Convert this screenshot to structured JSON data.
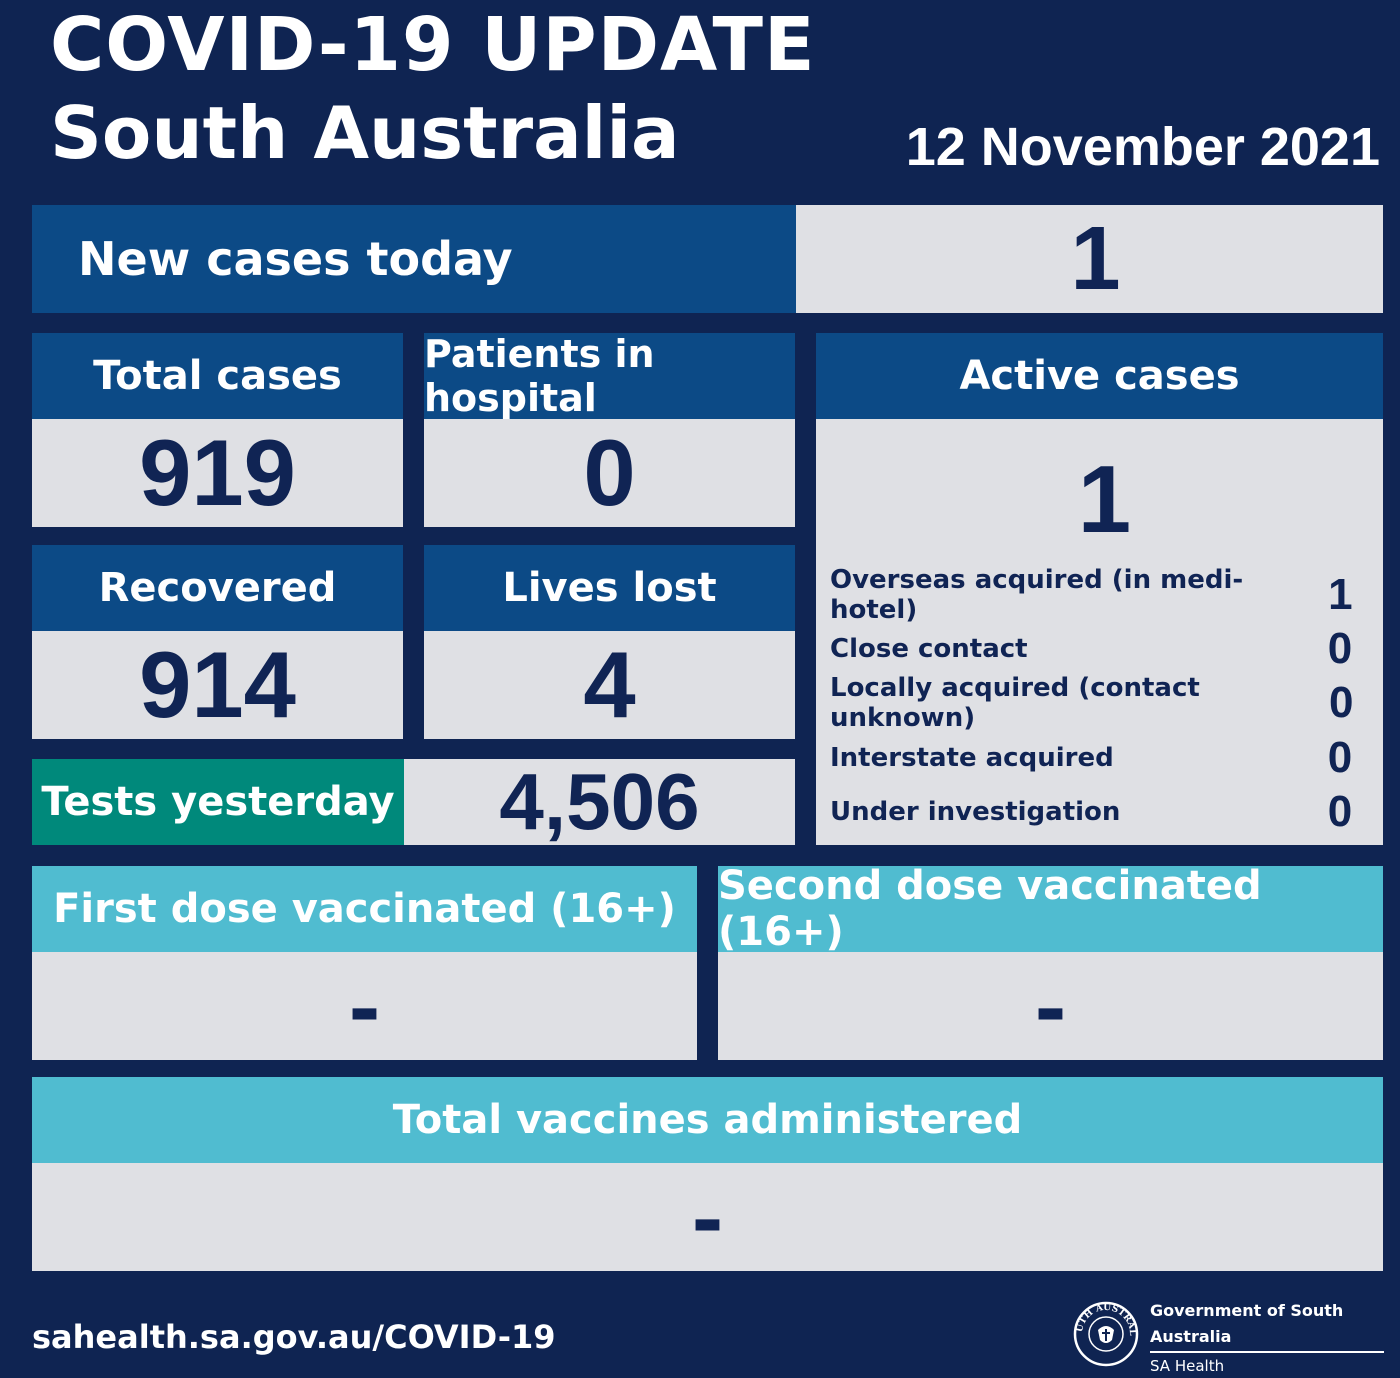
{
  "header": {
    "title": "COVID-19 UPDATE",
    "subtitle": "South Australia",
    "date": "12 November 2021"
  },
  "new_cases": {
    "label": "New cases today",
    "value": "1"
  },
  "total_cases": {
    "label": "Total cases",
    "value": "919"
  },
  "patients_in_hospital": {
    "label": "Patients in hospital",
    "value": "0"
  },
  "recovered": {
    "label": "Recovered",
    "value": "914"
  },
  "lives_lost": {
    "label": "Lives lost",
    "value": "4"
  },
  "tests_yesterday": {
    "label": "Tests yesterday",
    "value": "4,506"
  },
  "active_cases": {
    "label": "Active cases",
    "value": "1",
    "breakdown": [
      {
        "label": "Overseas acquired (in medi-hotel)",
        "value": "1"
      },
      {
        "label": "Close contact",
        "value": "0"
      },
      {
        "label": "Locally acquired (contact unknown)",
        "value": "0"
      },
      {
        "label": "Interstate acquired",
        "value": "0"
      },
      {
        "label": "Under investigation",
        "value": "0"
      }
    ]
  },
  "first_dose": {
    "label": "First dose vaccinated (16+)",
    "value": "-"
  },
  "second_dose": {
    "label": "Second dose vaccinated (16+)",
    "value": "-"
  },
  "total_vaccines": {
    "label": "Total vaccines administered",
    "value": "-"
  },
  "footer": {
    "url": "sahealth.sa.gov.au/COVID-19",
    "gov_line1": "Government of South Australia",
    "gov_line2": "SA Health",
    "emblem_text": "SOUTH AUSTRALIA"
  },
  "colors": {
    "background": "#0f2452",
    "header_dark": "#0c4a86",
    "header_light": "#50bcd0",
    "header_teal": "#00897b",
    "value_box": "#dfe0e4",
    "value_text": "#102454"
  }
}
